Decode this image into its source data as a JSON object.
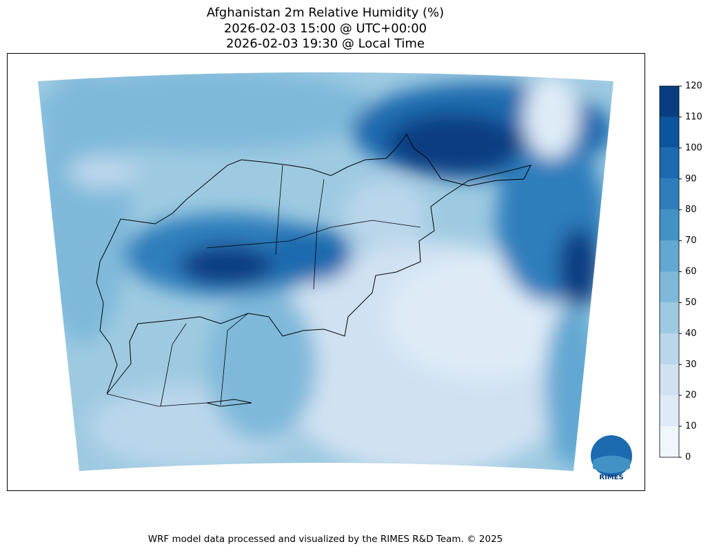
{
  "title": [
    "Afghanistan 2m Relative Humidity (%)",
    "2026-02-03 15:00 @ UTC+00:00",
    "2026-02-03 19:30 @ Local Time"
  ],
  "colorbar": {
    "lim": [
      0,
      120
    ],
    "ticks": [
      0,
      10,
      20,
      30,
      40,
      50,
      60,
      70,
      80,
      90,
      100,
      110,
      120
    ],
    "colors": [
      "#f0f6fd",
      "#deebf7",
      "#d0e1f2",
      "#bad6eb",
      "#9ecae1",
      "#7fb9da",
      "#62a8d2",
      "#4292c6",
      "#2e7ebc",
      "#1c6aaf",
      "#0b559f",
      "#083e81"
    ]
  },
  "logo": "RIMES",
  "footer": "WRF model data processed and visualized by the RIMES R&D Team. © 2025"
}
